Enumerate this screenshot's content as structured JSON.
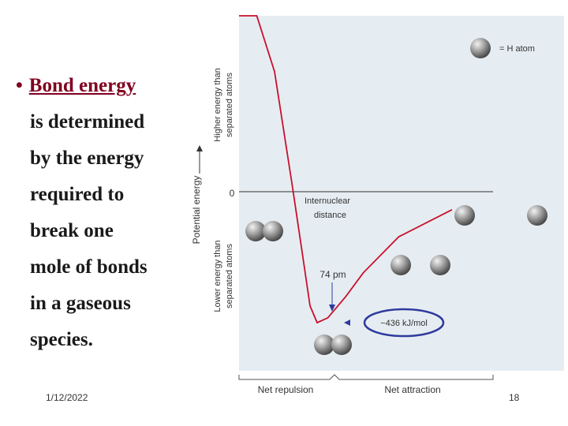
{
  "slide": {
    "bullet_term": "Bond energy",
    "bullet_lines": [
      "is determined",
      "by the energy",
      "required to",
      "break one",
      "mole of bonds",
      "in a gaseous",
      "species."
    ],
    "footer_date": "1/12/2022",
    "page_number": "18"
  },
  "chart_data": {
    "type": "line",
    "title": "",
    "ylabel": "Potential energy",
    "ylabel_upper": "Higher energy than separated atoms",
    "ylabel_lower": "Lower energy than separated atoms",
    "y_zero_label": "0",
    "zero_line_label": "Internuclear distance",
    "legend": "= H atom",
    "region_labels": [
      "Net repulsion",
      "Net attraction"
    ],
    "annotations": {
      "bond_length": "74 pm",
      "bond_energy": "−436 kJ/mol"
    },
    "series": [
      {
        "x": [
          30,
          40,
          50,
          60,
          65,
          70,
          74,
          80,
          90,
          100,
          120,
          150
        ],
        "y": [
          1500,
          900,
          400,
          20,
          -180,
          -380,
          -436,
          -420,
          -350,
          -270,
          -150,
          -60
        ]
      }
    ],
    "colors": {
      "curve": "#c8102e",
      "energy_oval": "#2e3a9e",
      "bullet": "#800020"
    }
  }
}
